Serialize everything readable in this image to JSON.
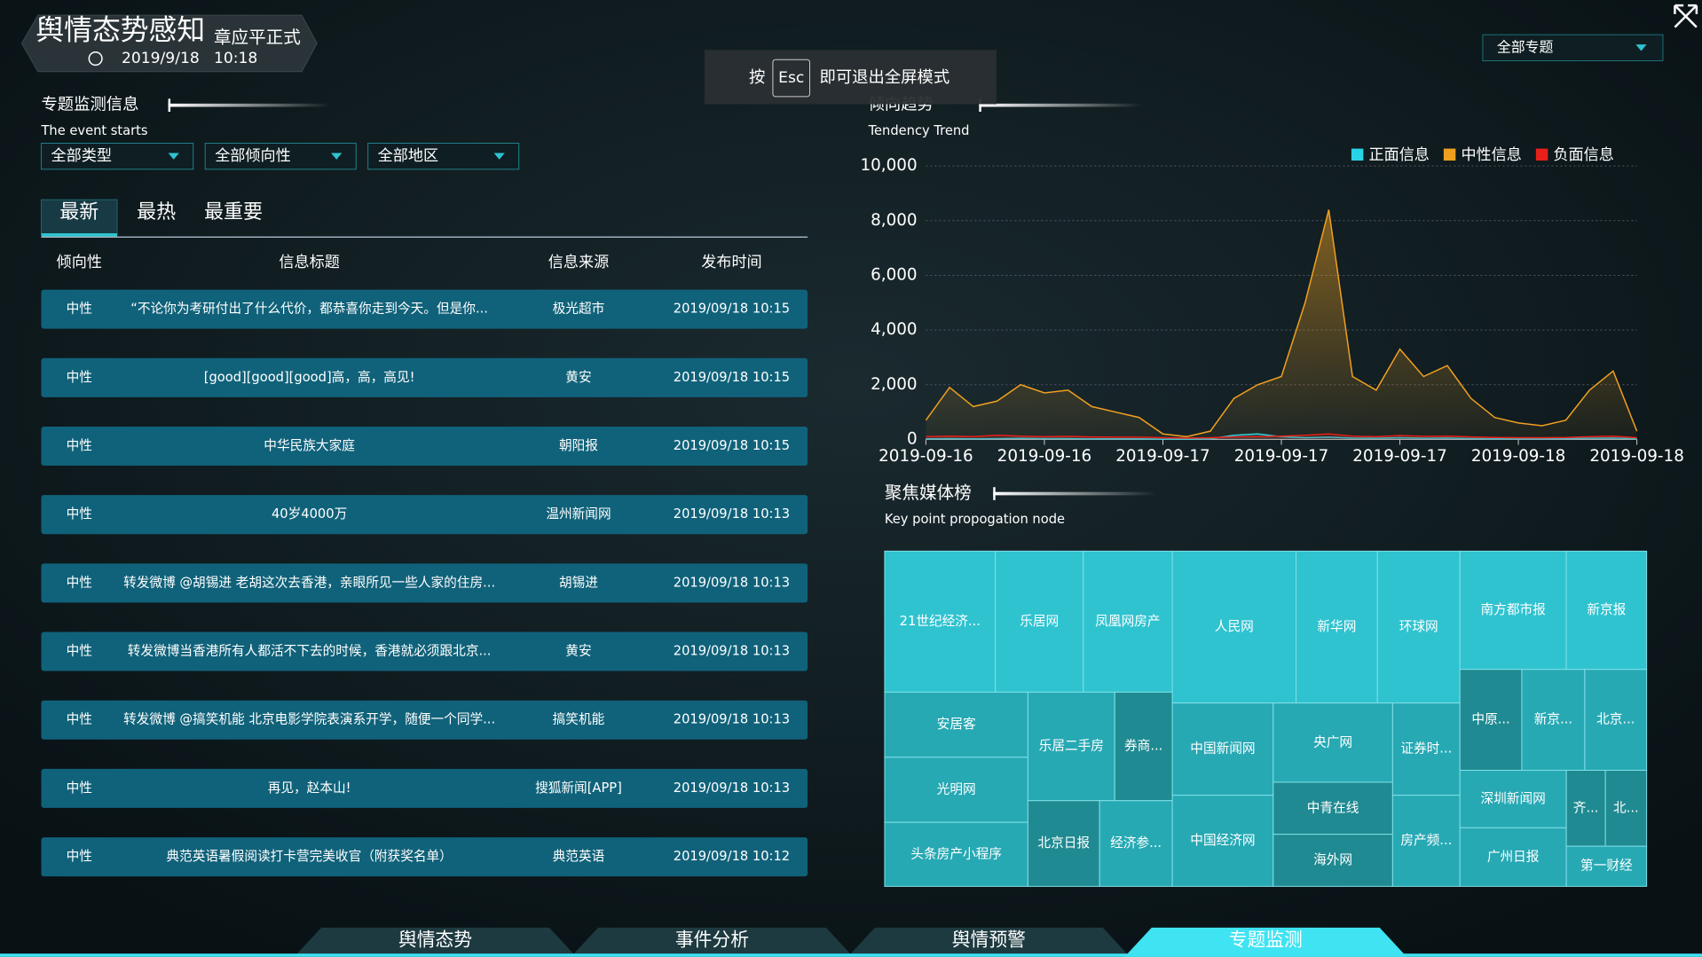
{
  "header": {
    "title": "舆情态势感知",
    "user": "章应平正式",
    "date": "2019/9/18",
    "time": "10:18"
  },
  "topic_select": "全部专题",
  "esc_notice": {
    "prefix": "按",
    "key": "Esc",
    "suffix": "即可退出全屏模式"
  },
  "monitor": {
    "title": "专题监测信息",
    "subtitle": "The event starts",
    "filters": [
      "全部类型",
      "全部倾向性",
      "全部地区"
    ],
    "tabs": [
      "最新",
      "最热",
      "最重要"
    ],
    "columns": [
      "倾向性",
      "信息标题",
      "信息来源",
      "发布时间"
    ],
    "rows": [
      [
        "中性",
        "“不论你为考研付出了什么代价，都恭喜你走到今天。但是你...",
        "极光超市",
        "2019/09/18 10:15"
      ],
      [
        "中性",
        "[good][good][good]高，高，高见!",
        "黄安",
        "2019/09/18 10:15"
      ],
      [
        "中性",
        "中华民族大家庭",
        "朝阳报",
        "2019/09/18 10:15"
      ],
      [
        "中性",
        "40岁4000万",
        "温州新闻网",
        "2019/09/18 10:13"
      ],
      [
        "中性",
        "转发微博 @胡锡进 老胡这次去香港，亲眼所见一些人家的住房...",
        "胡锡进",
        "2019/09/18 10:13"
      ],
      [
        "中性",
        "转发微博当香港所有人都活不下去的时候，香港就必须跟北京...",
        "黄安",
        "2019/09/18 10:13"
      ],
      [
        "中性",
        "转发微博 @搞笑机能 北京电影学院表演系开学，随便一个同学...",
        "搞笑机能",
        "2019/09/18 10:13"
      ],
      [
        "中性",
        "再见，赵本山!",
        "搜狐新闻[APP]",
        "2019/09/18 10:13"
      ],
      [
        "中性",
        "典范英语暑假阅读打卡营完美收官（附获奖名单）",
        "典范英语",
        "2019/09/18 10:12"
      ]
    ]
  },
  "trend": {
    "type": "area",
    "title": "倾向趋势",
    "subtitle": "Tendency Trend",
    "x": [
      "2019-09-16",
      null,
      null,
      null,
      null,
      "2019-09-16",
      null,
      null,
      null,
      null,
      "2019-09-17",
      null,
      null,
      null,
      null,
      "2019-09-17",
      null,
      null,
      null,
      null,
      "2019-09-17",
      null,
      null,
      null,
      null,
      "2019-09-18",
      null,
      null,
      null,
      null,
      "2019-09-18"
    ],
    "ylim": [
      0,
      10000
    ],
    "yticks": [
      0,
      {
        "value": 2000,
        "label": "2,000"
      },
      {
        "value": 4000,
        "label": "4,000"
      },
      {
        "value": 6000,
        "label": "6,000"
      },
      {
        "value": 8000,
        "label": "8,000"
      },
      {
        "value": 10000,
        "label": "10,000"
      }
    ],
    "grid": true,
    "series": [
      {
        "name": "正面信息",
        "color": "#29d3e6",
        "values": [
          20,
          30,
          20,
          30,
          40,
          30,
          30,
          20,
          20,
          20,
          10,
          10,
          20,
          150,
          200,
          100,
          60,
          80,
          50,
          40,
          60,
          40,
          50,
          30,
          20,
          20,
          20,
          30,
          40,
          50,
          20
        ]
      },
      {
        "name": "中性信息",
        "color": "#f0a020",
        "values": [
          700,
          1900,
          1200,
          1400,
          2000,
          1700,
          1800,
          1200,
          1000,
          800,
          200,
          100,
          300,
          1500,
          2000,
          2300,
          5000,
          8400,
          2300,
          1800,
          3300,
          2300,
          2700,
          1500,
          800,
          600,
          500,
          700,
          1800,
          2500,
          300
        ]
      },
      {
        "name": "负面信息",
        "color": "#e8201a",
        "values": [
          100,
          120,
          100,
          150,
          120,
          100,
          110,
          90,
          80,
          80,
          60,
          50,
          60,
          90,
          100,
          120,
          150,
          200,
          120,
          100,
          140,
          110,
          120,
          90,
          70,
          60,
          60,
          70,
          100,
          120,
          60
        ]
      }
    ]
  },
  "media": {
    "title": "聚焦媒体榜",
    "subtitle": "Key point propogation node",
    "items": [
      "21世纪经济...",
      "乐居网",
      "凤凰网房产",
      "人民网",
      "新华网",
      "环球网",
      "南方都市报",
      "新京报",
      "安居客",
      "光明网",
      "头条房产小程序",
      "乐居二手房",
      "券商...",
      "北京日报",
      "经济参...",
      "中国新闻网",
      "中国经济网",
      "央广网",
      "中青在线",
      "海外网",
      "证券时...",
      "房产频...",
      "中原...",
      "新京...",
      "北京...",
      "深圳新闻网",
      "广州日报",
      "齐...",
      "北...",
      "第一财经"
    ]
  },
  "nav": [
    "舆情态势",
    "事件分析",
    "舆情预警",
    "专题监测"
  ]
}
